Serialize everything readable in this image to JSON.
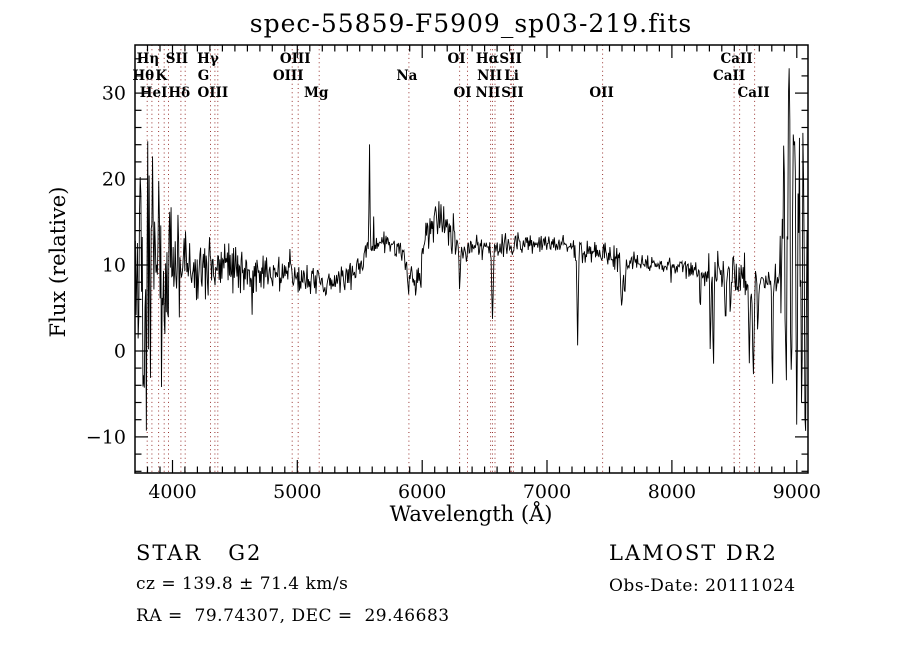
{
  "title": "spec-55859-F5909_sp03-219.fits",
  "annotations": {
    "class_label": "STAR   G2",
    "survey": "LAMOST DR2",
    "cz": "cz = 139.8 ± 71.4 km/s",
    "obs_date": "Obs-Date: 20111024",
    "ra_dec": "RA =  79.74307, DEC =  29.46683"
  },
  "chart_data": {
    "type": "line",
    "title": "spec-55859-F5909_sp03-219.fits",
    "xlabel": "Wavelength (Å)",
    "ylabel": "Flux (relative)",
    "xlim": [
      3700,
      9090
    ],
    "ylim": [
      -14.2,
      35.6
    ],
    "x_ticks": [
      4000,
      5000,
      6000,
      7000,
      8000,
      9000
    ],
    "y_ticks": [
      -10,
      0,
      10,
      20,
      30
    ],
    "x_minor_step": 100,
    "y_minor_step": 2,
    "grid": false,
    "series_color": "#000000",
    "marker_line_color": "#993330",
    "marker_lines": [
      3798,
      3835,
      3889,
      3934,
      3968,
      4068,
      4102,
      4305,
      4340,
      4363,
      4959,
      5007,
      5175,
      5894,
      6300,
      6363,
      6548,
      6563,
      6583,
      6708,
      6716,
      6731,
      7445,
      8498,
      8542,
      8662
    ],
    "line_markers": [
      {
        "label": "Hη",
        "wavelength": 3835,
        "row": 0,
        "dx": -4
      },
      {
        "label": "SII",
        "wavelength": 4068,
        "row": 0,
        "dx": -4
      },
      {
        "label": "Hγ",
        "wavelength": 4340,
        "row": 0,
        "dx": -7
      },
      {
        "label": "OIII",
        "wavelength": 5007,
        "row": 0,
        "dx": -3
      },
      {
        "label": "OI",
        "wavelength": 6300,
        "row": 0,
        "dx": -3
      },
      {
        "label": "Hα",
        "wavelength": 6563,
        "row": 0,
        "dx": -5
      },
      {
        "label": "SII",
        "wavelength": 6716,
        "row": 0,
        "dx": -1
      },
      {
        "label": "CaII",
        "wavelength": 8542,
        "row": 0,
        "dx": -3
      },
      {
        "label": "Hθ",
        "wavelength": 3798,
        "row": 1,
        "dx": -4
      },
      {
        "label": "K",
        "wavelength": 3934,
        "row": 1,
        "dx": -3
      },
      {
        "label": "G",
        "wavelength": 4305,
        "row": 1,
        "dx": -7
      },
      {
        "label": "OIII",
        "wavelength": 4959,
        "row": 1,
        "dx": -4
      },
      {
        "label": "Na",
        "wavelength": 5894,
        "row": 1,
        "dx": -2
      },
      {
        "label": "NII",
        "wavelength": 6548,
        "row": 1,
        "dx": -1
      },
      {
        "label": "Li",
        "wavelength": 6708,
        "row": 1,
        "dx": 1
      },
      {
        "label": "CaII",
        "wavelength": 8498,
        "row": 1,
        "dx": -5
      },
      {
        "label": "HeI",
        "wavelength": 3889,
        "row": 2,
        "dx": -5
      },
      {
        "label": "Hδ",
        "wavelength": 4102,
        "row": 2,
        "dx": -6
      },
      {
        "label": "OIII",
        "wavelength": 4363,
        "row": 2,
        "dx": -5
      },
      {
        "label": "Mg",
        "wavelength": 5175,
        "row": 2,
        "dx": -3
      },
      {
        "label": "OI",
        "wavelength": 6363,
        "row": 2,
        "dx": -5
      },
      {
        "label": "NII",
        "wavelength": 6583,
        "row": 2,
        "dx": -7
      },
      {
        "label": "SII",
        "wavelength": 6731,
        "row": 2,
        "dx": -1
      },
      {
        "label": "OII",
        "wavelength": 7445,
        "row": 2,
        "dx": -1
      },
      {
        "label": "CaII",
        "wavelength": 8662,
        "row": 2,
        "dx": -1
      }
    ],
    "spectrum_envelope": [
      [
        3700,
        6,
        22
      ],
      [
        3740,
        7,
        20
      ],
      [
        3780,
        8,
        18
      ],
      [
        3820,
        8,
        16
      ],
      [
        3860,
        8,
        13
      ],
      [
        3900,
        8.5,
        11
      ],
      [
        3950,
        9,
        8.5
      ],
      [
        4000,
        9,
        7
      ],
      [
        4050,
        9.5,
        6
      ],
      [
        4100,
        9.5,
        5
      ],
      [
        4200,
        9.5,
        4.2
      ],
      [
        4300,
        9.5,
        3.8
      ],
      [
        4400,
        10,
        3.2
      ],
      [
        4500,
        9.8,
        2.8
      ],
      [
        4600,
        9.5,
        2.6
      ],
      [
        4700,
        9.2,
        2.2
      ],
      [
        4800,
        9,
        2.0
      ],
      [
        4900,
        8.8,
        1.9
      ],
      [
        5000,
        8.5,
        1.8
      ],
      [
        5100,
        8.1,
        1.7
      ],
      [
        5200,
        7.8,
        1.6
      ],
      [
        5300,
        7.9,
        1.5
      ],
      [
        5350,
        8.2,
        1.5
      ],
      [
        5450,
        9,
        1.5
      ],
      [
        5520,
        10.5,
        1.4
      ],
      [
        5560,
        12,
        1.4
      ],
      [
        5620,
        12.6,
        1.2
      ],
      [
        5700,
        12.6,
        1.1
      ],
      [
        5780,
        12.2,
        1.0
      ],
      [
        5850,
        11,
        1.2
      ],
      [
        5900,
        9.5,
        1.6
      ],
      [
        5950,
        7.6,
        1.6
      ],
      [
        5990,
        8.5,
        2.0
      ],
      [
        6010,
        12,
        2.0
      ],
      [
        6060,
        14.8,
        2.2
      ],
      [
        6120,
        15,
        2.4
      ],
      [
        6180,
        14.6,
        2.4
      ],
      [
        6240,
        13.5,
        2.2
      ],
      [
        6290,
        12.3,
        1.8
      ],
      [
        6350,
        11.8,
        1.6
      ],
      [
        6420,
        12.2,
        1.5
      ],
      [
        6500,
        12.3,
        1.4
      ],
      [
        6560,
        11.8,
        1.4
      ],
      [
        6620,
        12.2,
        1.2
      ],
      [
        6700,
        12.4,
        1.2
      ],
      [
        6800,
        12.5,
        1.1
      ],
      [
        6900,
        12.5,
        1.0
      ],
      [
        7000,
        12.6,
        1.0
      ],
      [
        7100,
        12.4,
        1.1
      ],
      [
        7200,
        12,
        1.4
      ],
      [
        7260,
        11.6,
        1.6
      ],
      [
        7320,
        11.4,
        1.4
      ],
      [
        7400,
        11.5,
        1.2
      ],
      [
        7480,
        11.2,
        1.1
      ],
      [
        7560,
        10.6,
        1.3
      ],
      [
        7620,
        10,
        1.4
      ],
      [
        7680,
        10.4,
        1.0
      ],
      [
        7760,
        10.4,
        0.9
      ],
      [
        7840,
        10.2,
        0.9
      ],
      [
        7920,
        10,
        1.0
      ],
      [
        8000,
        10,
        1.0
      ],
      [
        8080,
        9.8,
        1.1
      ],
      [
        8160,
        9.6,
        1.3
      ],
      [
        8240,
        9.3,
        1.6
      ],
      [
        8320,
        9.2,
        2.0
      ],
      [
        8400,
        9.6,
        2.4
      ],
      [
        8470,
        9.2,
        2.2
      ],
      [
        8530,
        8.6,
        1.8
      ],
      [
        8590,
        8.2,
        1.6
      ],
      [
        8650,
        8,
        1.8
      ],
      [
        8700,
        7.8,
        1.0
      ],
      [
        8740,
        8,
        0.9
      ],
      [
        8780,
        8.1,
        1.1
      ],
      [
        8820,
        8.4,
        1.5
      ],
      [
        8860,
        9,
        4
      ],
      [
        8900,
        10,
        10
      ],
      [
        8940,
        11,
        16
      ],
      [
        8980,
        10,
        19
      ],
      [
        9030,
        9,
        21
      ],
      [
        9090,
        7,
        20
      ]
    ],
    "spectrum_features": [
      [
        3745,
        22,
        3
      ],
      [
        3772,
        -11,
        3
      ],
      [
        3838,
        23.5,
        3
      ],
      [
        5578,
        24.3,
        3.5
      ],
      [
        5891,
        6.5,
        5
      ],
      [
        6300,
        7.0,
        5
      ],
      [
        6563,
        3.8,
        6
      ],
      [
        7245,
        0.6,
        5
      ],
      [
        7598,
        5.2,
        7
      ],
      [
        7622,
        6.5,
        6
      ],
      [
        8227,
        4.5,
        4
      ],
      [
        8308,
        -0.5,
        4
      ],
      [
        8332,
        -2.8,
        4
      ],
      [
        8430,
        3.0,
        4
      ],
      [
        8468,
        4.0,
        4
      ],
      [
        8620,
        -1.5,
        5
      ],
      [
        8652,
        -3.0,
        6
      ],
      [
        8688,
        2,
        4
      ],
      [
        8805,
        -5.3,
        4
      ],
      [
        8895,
        24,
        4
      ],
      [
        8915,
        -6,
        4
      ],
      [
        8938,
        33.5,
        5
      ],
      [
        8958,
        -5,
        4
      ],
      [
        8980,
        28,
        5
      ],
      [
        9000,
        -8.5,
        4
      ],
      [
        9020,
        26,
        4
      ],
      [
        9038,
        -6,
        4
      ],
      [
        9055,
        20,
        4
      ],
      [
        9070,
        -10.5,
        5
      ],
      [
        9082,
        14,
        4
      ]
    ],
    "sample_step_angstrom": 5.5,
    "noise_seed": 20111024
  }
}
